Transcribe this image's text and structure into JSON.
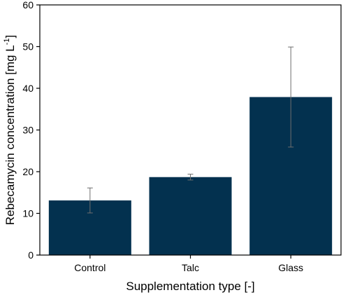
{
  "chart_data": {
    "type": "bar",
    "title": "",
    "xlabel": "Supplementation type [-]",
    "ylabel_main": "Rebecamycin concentration [mg L",
    "ylabel_sup": "-1",
    "ylabel_close": "]",
    "categories": [
      "Control",
      "Talc",
      "Glass"
    ],
    "values": [
      13.1,
      18.7,
      37.9
    ],
    "errors": [
      3.0,
      0.7,
      12.0
    ],
    "ylim": [
      0,
      60
    ],
    "yticks": [
      0,
      10,
      20,
      30,
      40,
      50,
      60
    ],
    "bar_color": "#03314f",
    "grid": false
  }
}
